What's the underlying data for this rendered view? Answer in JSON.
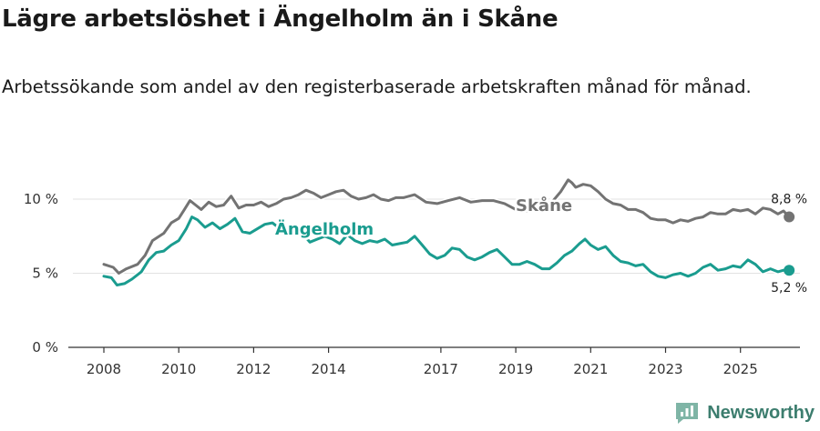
{
  "header": {
    "title": "Lägre arbetslöshet i Ängelholm än i Skåne",
    "subtitle": "Arbetssökande som andel av den registerbaserade arbetskraften månad för månad."
  },
  "brand": {
    "name": "Newsworthy",
    "icon": "newsworthy-logo-icon",
    "color": "#3c7d6e"
  },
  "chart_data": {
    "type": "line",
    "title": "Lägre arbetslöshet i Ängelholm än i Skåne",
    "subtitle": "Arbetssökande som andel av den registerbaserade arbetskraften månad för månad.",
    "xlabel": "",
    "ylabel": "",
    "xlim": [
      2007.4,
      2026.9
    ],
    "ylim": [
      0,
      10
    ],
    "x_ticks": [
      2008,
      2010,
      2012,
      2014,
      2017,
      2019,
      2021,
      2023,
      2025
    ],
    "x_tick_labels": [
      "2008",
      "2010",
      "2012",
      "2014",
      "2017",
      "2019",
      "2021",
      "2023",
      "2025"
    ],
    "y_ticks": [
      0,
      5,
      10
    ],
    "y_tick_labels": [
      "0 %",
      "5 %",
      "10 %"
    ],
    "grid": "horizontal",
    "series": [
      {
        "name": "Skåne",
        "label": "Skåne",
        "color": "#737373",
        "end_label": "8,8 %",
        "points": [
          [
            2008.0,
            5.6
          ],
          [
            2008.25,
            5.4
          ],
          [
            2008.4,
            5.0
          ],
          [
            2008.6,
            5.3
          ],
          [
            2008.9,
            5.6
          ],
          [
            2009.1,
            6.2
          ],
          [
            2009.3,
            7.2
          ],
          [
            2009.6,
            7.7
          ],
          [
            2009.8,
            8.4
          ],
          [
            2010.0,
            8.7
          ],
          [
            2010.15,
            9.3
          ],
          [
            2010.3,
            9.9
          ],
          [
            2010.45,
            9.6
          ],
          [
            2010.6,
            9.3
          ],
          [
            2010.8,
            9.8
          ],
          [
            2011.0,
            9.5
          ],
          [
            2011.2,
            9.6
          ],
          [
            2011.4,
            10.2
          ],
          [
            2011.6,
            9.4
          ],
          [
            2011.8,
            9.6
          ],
          [
            2012.0,
            9.6
          ],
          [
            2012.2,
            9.8
          ],
          [
            2012.4,
            9.5
          ],
          [
            2012.6,
            9.7
          ],
          [
            2012.8,
            10.0
          ],
          [
            2013.0,
            10.1
          ],
          [
            2013.2,
            10.3
          ],
          [
            2013.4,
            10.6
          ],
          [
            2013.6,
            10.4
          ],
          [
            2013.8,
            10.1
          ],
          [
            2014.0,
            10.3
          ],
          [
            2014.2,
            10.5
          ],
          [
            2014.4,
            10.6
          ],
          [
            2014.6,
            10.2
          ],
          [
            2014.8,
            10.0
          ],
          [
            2015.0,
            10.1
          ],
          [
            2015.2,
            10.3
          ],
          [
            2015.4,
            10.0
          ],
          [
            2015.6,
            9.9
          ],
          [
            2015.8,
            10.1
          ],
          [
            2016.0,
            10.1
          ],
          [
            2016.3,
            10.3
          ],
          [
            2016.6,
            9.8
          ],
          [
            2016.9,
            9.7
          ],
          [
            2017.2,
            9.9
          ],
          [
            2017.5,
            10.1
          ],
          [
            2017.8,
            9.8
          ],
          [
            2018.1,
            9.9
          ],
          [
            2018.4,
            9.9
          ],
          [
            2018.7,
            9.7
          ],
          [
            2019.0,
            9.3
          ],
          [
            2019.2,
            9.2
          ],
          [
            2019.4,
            9.2
          ],
          [
            2019.6,
            9.5
          ],
          [
            2019.8,
            9.7
          ],
          [
            2020.0,
            9.9
          ],
          [
            2020.2,
            10.5
          ],
          [
            2020.4,
            11.3
          ],
          [
            2020.5,
            11.1
          ],
          [
            2020.6,
            10.8
          ],
          [
            2020.8,
            11.0
          ],
          [
            2021.0,
            10.9
          ],
          [
            2021.2,
            10.5
          ],
          [
            2021.4,
            10.0
          ],
          [
            2021.6,
            9.7
          ],
          [
            2021.8,
            9.6
          ],
          [
            2022.0,
            9.3
          ],
          [
            2022.2,
            9.3
          ],
          [
            2022.4,
            9.1
          ],
          [
            2022.6,
            8.7
          ],
          [
            2022.8,
            8.6
          ],
          [
            2023.0,
            8.6
          ],
          [
            2023.2,
            8.4
          ],
          [
            2023.4,
            8.6
          ],
          [
            2023.6,
            8.5
          ],
          [
            2023.8,
            8.7
          ],
          [
            2024.0,
            8.8
          ],
          [
            2024.2,
            9.1
          ],
          [
            2024.4,
            9.0
          ],
          [
            2024.6,
            9.0
          ],
          [
            2024.8,
            9.3
          ],
          [
            2025.0,
            9.2
          ],
          [
            2025.2,
            9.3
          ],
          [
            2025.4,
            9.0
          ],
          [
            2025.6,
            9.4
          ],
          [
            2025.8,
            9.3
          ],
          [
            2026.0,
            9.0
          ],
          [
            2026.15,
            9.2
          ],
          [
            2026.3,
            8.8
          ]
        ]
      },
      {
        "name": "Ängelholm",
        "label": "Ängelholm",
        "color": "#1a9c8f",
        "end_label": "5,2 %",
        "points": [
          [
            2008.0,
            4.8
          ],
          [
            2008.2,
            4.7
          ],
          [
            2008.35,
            4.2
          ],
          [
            2008.55,
            4.3
          ],
          [
            2008.75,
            4.6
          ],
          [
            2009.0,
            5.1
          ],
          [
            2009.2,
            5.9
          ],
          [
            2009.4,
            6.4
          ],
          [
            2009.6,
            6.5
          ],
          [
            2009.8,
            6.9
          ],
          [
            2010.0,
            7.2
          ],
          [
            2010.2,
            8.0
          ],
          [
            2010.35,
            8.8
          ],
          [
            2010.5,
            8.6
          ],
          [
            2010.7,
            8.1
          ],
          [
            2010.9,
            8.4
          ],
          [
            2011.1,
            8.0
          ],
          [
            2011.3,
            8.3
          ],
          [
            2011.5,
            8.7
          ],
          [
            2011.7,
            7.8
          ],
          [
            2011.9,
            7.7
          ],
          [
            2012.1,
            8.0
          ],
          [
            2012.3,
            8.3
          ],
          [
            2012.5,
            8.4
          ],
          [
            2012.7,
            8.0
          ],
          [
            2012.9,
            7.8
          ],
          [
            2013.1,
            7.9
          ],
          [
            2013.3,
            7.7
          ],
          [
            2013.5,
            7.1
          ],
          [
            2013.7,
            7.3
          ],
          [
            2013.9,
            7.5
          ],
          [
            2014.1,
            7.3
          ],
          [
            2014.3,
            7.0
          ],
          [
            2014.5,
            7.6
          ],
          [
            2014.7,
            7.2
          ],
          [
            2014.9,
            7.0
          ],
          [
            2015.1,
            7.2
          ],
          [
            2015.3,
            7.1
          ],
          [
            2015.5,
            7.3
          ],
          [
            2015.7,
            6.9
          ],
          [
            2015.9,
            7.0
          ],
          [
            2016.1,
            7.1
          ],
          [
            2016.3,
            7.5
          ],
          [
            2016.5,
            6.9
          ],
          [
            2016.7,
            6.3
          ],
          [
            2016.9,
            6.0
          ],
          [
            2017.1,
            6.2
          ],
          [
            2017.3,
            6.7
          ],
          [
            2017.5,
            6.6
          ],
          [
            2017.7,
            6.1
          ],
          [
            2017.9,
            5.9
          ],
          [
            2018.1,
            6.1
          ],
          [
            2018.3,
            6.4
          ],
          [
            2018.5,
            6.6
          ],
          [
            2018.7,
            6.1
          ],
          [
            2018.9,
            5.6
          ],
          [
            2019.1,
            5.6
          ],
          [
            2019.3,
            5.8
          ],
          [
            2019.5,
            5.6
          ],
          [
            2019.7,
            5.3
          ],
          [
            2019.9,
            5.3
          ],
          [
            2020.1,
            5.7
          ],
          [
            2020.3,
            6.2
          ],
          [
            2020.5,
            6.5
          ],
          [
            2020.7,
            7.0
          ],
          [
            2020.85,
            7.3
          ],
          [
            2021.0,
            6.9
          ],
          [
            2021.2,
            6.6
          ],
          [
            2021.4,
            6.8
          ],
          [
            2021.6,
            6.2
          ],
          [
            2021.8,
            5.8
          ],
          [
            2022.0,
            5.7
          ],
          [
            2022.2,
            5.5
          ],
          [
            2022.4,
            5.6
          ],
          [
            2022.6,
            5.1
          ],
          [
            2022.8,
            4.8
          ],
          [
            2023.0,
            4.7
          ],
          [
            2023.2,
            4.9
          ],
          [
            2023.4,
            5.0
          ],
          [
            2023.6,
            4.8
          ],
          [
            2023.8,
            5.0
          ],
          [
            2024.0,
            5.4
          ],
          [
            2024.2,
            5.6
          ],
          [
            2024.4,
            5.2
          ],
          [
            2024.6,
            5.3
          ],
          [
            2024.8,
            5.5
          ],
          [
            2025.0,
            5.4
          ],
          [
            2025.2,
            5.9
          ],
          [
            2025.4,
            5.6
          ],
          [
            2025.6,
            5.1
          ],
          [
            2025.8,
            5.3
          ],
          [
            2026.0,
            5.1
          ],
          [
            2026.15,
            5.2
          ],
          [
            2026.3,
            5.2
          ]
        ]
      }
    ]
  }
}
